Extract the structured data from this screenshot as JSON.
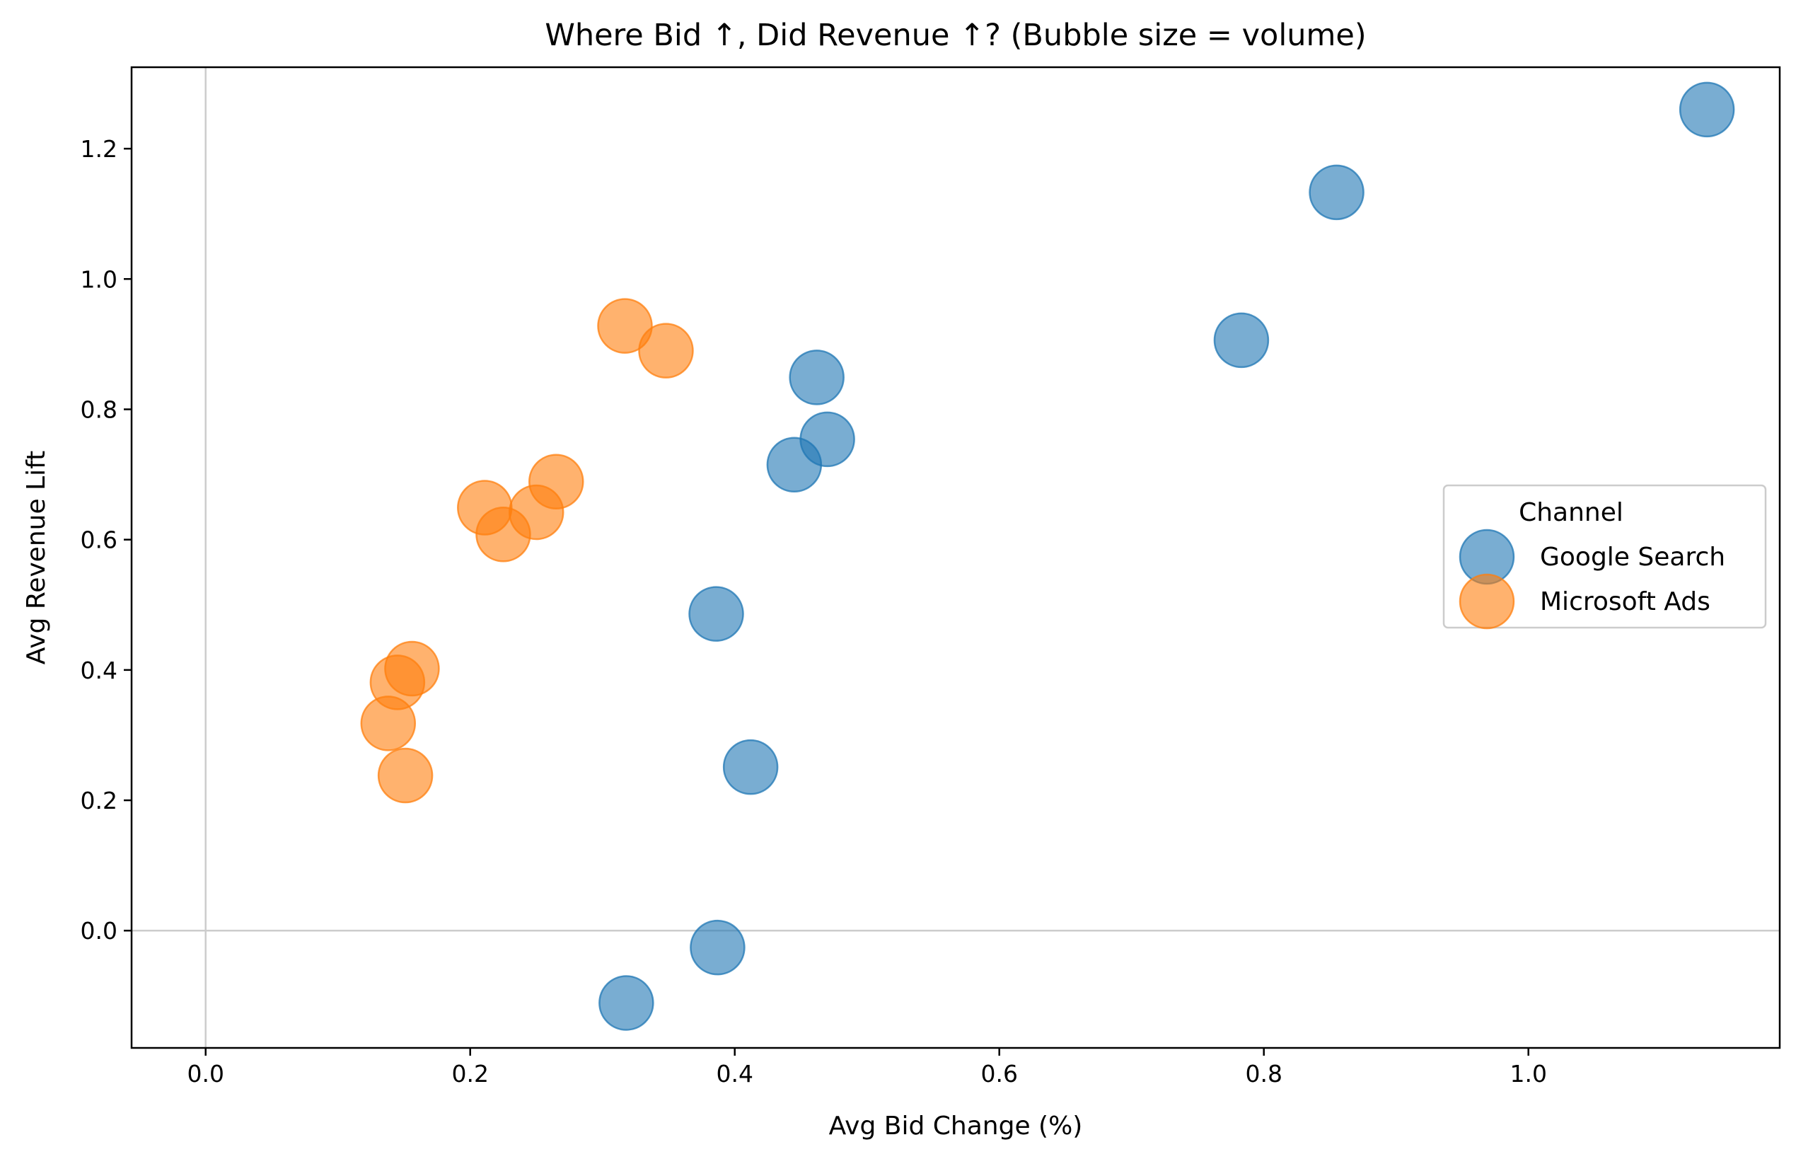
{
  "chart_data": {
    "type": "scatter",
    "title": "Where Bid ↑, Did Revenue ↑?  (Bubble size = volume)",
    "xlabel": "Avg Bid Change (%)",
    "ylabel": "Avg Revenue Lift",
    "xlim": [
      -0.056,
      1.19
    ],
    "ylim": [
      -0.18,
      1.325
    ],
    "xticks": [
      0.0,
      0.2,
      0.4,
      0.6,
      0.8,
      1.0
    ],
    "xtick_labels": [
      "0.0",
      "0.2",
      "0.4",
      "0.6",
      "0.8",
      "1.0"
    ],
    "yticks": [
      0.0,
      0.2,
      0.4,
      0.6,
      0.8,
      1.0,
      1.2
    ],
    "ytick_labels": [
      "0.0",
      "0.2",
      "0.4",
      "0.6",
      "0.8",
      "1.0",
      "1.2"
    ],
    "grid": false,
    "reference_lines": [
      "x=0",
      "y=0"
    ],
    "legend": {
      "title": "Channel",
      "placement": "center-right"
    },
    "series": [
      {
        "name": "Google Search",
        "color": "#1f77b4",
        "points": [
          {
            "x": 1.135,
            "y": 1.26
          },
          {
            "x": 0.855,
            "y": 1.133
          },
          {
            "x": 0.783,
            "y": 0.906
          },
          {
            "x": 0.462,
            "y": 0.849
          },
          {
            "x": 0.47,
            "y": 0.754
          },
          {
            "x": 0.445,
            "y": 0.715
          },
          {
            "x": 0.386,
            "y": 0.486
          },
          {
            "x": 0.412,
            "y": 0.251
          },
          {
            "x": 0.387,
            "y": -0.026
          },
          {
            "x": 0.318,
            "y": -0.111
          }
        ]
      },
      {
        "name": "Microsoft Ads",
        "color": "#ff7f0e",
        "points": [
          {
            "x": 0.317,
            "y": 0.928
          },
          {
            "x": 0.348,
            "y": 0.89
          },
          {
            "x": 0.265,
            "y": 0.689
          },
          {
            "x": 0.211,
            "y": 0.649
          },
          {
            "x": 0.25,
            "y": 0.642
          },
          {
            "x": 0.225,
            "y": 0.608
          },
          {
            "x": 0.156,
            "y": 0.402
          },
          {
            "x": 0.145,
            "y": 0.381
          },
          {
            "x": 0.138,
            "y": 0.318
          },
          {
            "x": 0.151,
            "y": 0.238
          }
        ]
      }
    ]
  }
}
